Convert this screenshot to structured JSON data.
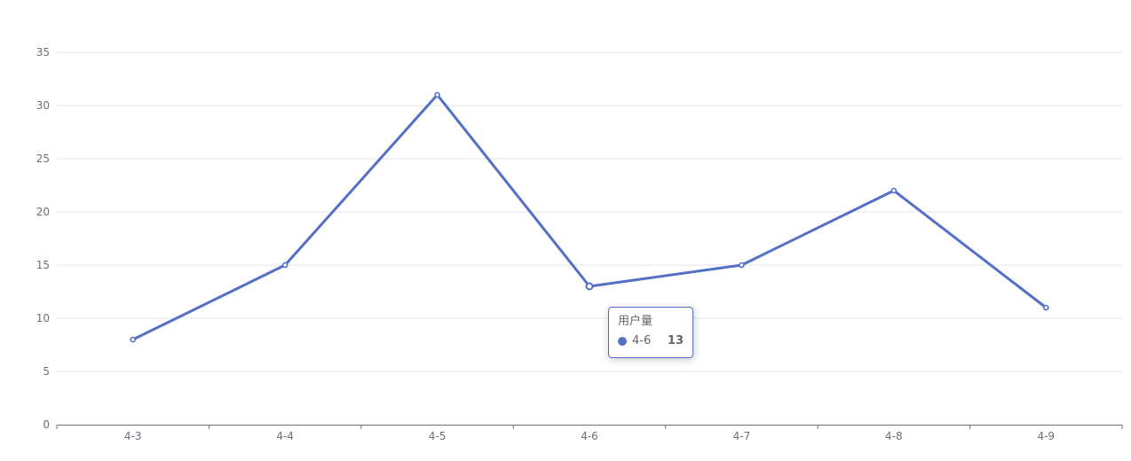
{
  "chart_data": {
    "type": "line",
    "categories": [
      "4-3",
      "4-4",
      "4-5",
      "4-6",
      "4-7",
      "4-8",
      "4-9"
    ],
    "series": [
      {
        "name": "用户量",
        "values": [
          8,
          15,
          31,
          13,
          15,
          22,
          11
        ],
        "color": "#5470c6"
      }
    ],
    "ylim": [
      0,
      35
    ],
    "yticks": [
      0,
      5,
      10,
      15,
      20,
      25,
      30,
      35
    ],
    "grid": true,
    "title": "",
    "xlabel": "",
    "ylabel": ""
  },
  "tooltip": {
    "title": "用户量",
    "category": "4-6",
    "value": "13",
    "color": "#5470c6"
  },
  "colors": {
    "line": "#5470c6",
    "gridline": "#e0e6f1",
    "axis": "#6e7079",
    "label": "#6e7079"
  }
}
